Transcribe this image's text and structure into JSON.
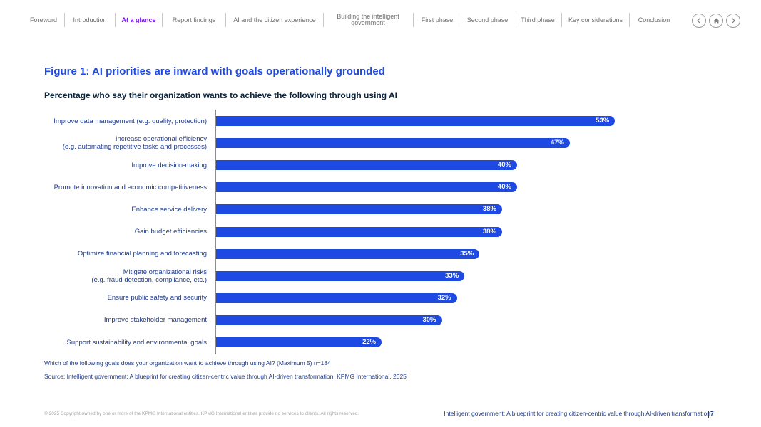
{
  "nav": {
    "items": [
      "Foreword",
      "Introduction",
      "At a glance",
      "Report findings",
      "AI and the citizen experience",
      "Building the intelligent government",
      "First phase",
      "Second phase",
      "Third phase",
      "Key considerations",
      "Conclusion"
    ],
    "active_index": 2,
    "back_icon": "chevron-left-icon",
    "home_icon": "home-icon",
    "forward_icon": "chevron-right-icon"
  },
  "figure": {
    "title": "Figure 1: AI priorities are inward with goals operationally grounded",
    "subtitle": "Percentage who say their organization wants to achieve the following through using AI"
  },
  "chart_data": {
    "type": "bar",
    "orientation": "horizontal",
    "title": "Figure 1: AI priorities are inward with goals operationally grounded",
    "subtitle": "Percentage who say their organization wants to achieve the following through using AI",
    "categories": [
      [
        "Improve data management (e.g. quality, protection)"
      ],
      [
        "Increase operational efficiency",
        "(e.g. automating repetitive tasks and processes)"
      ],
      [
        "Improve decision-making"
      ],
      [
        "Promote innovation and economic competitiveness"
      ],
      [
        "Enhance service delivery"
      ],
      [
        "Gain budget efficiencies"
      ],
      [
        "Optimize financial planning and forecasting"
      ],
      [
        "Mitigate organizational risks",
        "(e.g. fraud detection, compliance, etc.)"
      ],
      [
        "Ensure public safety and security"
      ],
      [
        "Improve stakeholder management"
      ],
      [
        "Support sustainability and environmental goals"
      ]
    ],
    "values": [
      53,
      47,
      40,
      40,
      38,
      38,
      35,
      33,
      32,
      30,
      22
    ],
    "value_labels": [
      "53%",
      "47%",
      "40%",
      "40%",
      "38%",
      "38%",
      "35%",
      "33%",
      "32%",
      "30%",
      "22%"
    ],
    "unit": "%",
    "color": "#1e49e2"
  },
  "notes": {
    "question": "Which of the following goals does your organization want to achieve through using AI? (Maximum 5) n=184",
    "source": "Source: Intelligent government: A blueprint for creating citizen-centric value through AI-driven transformation, KPMG International, 2025"
  },
  "footer": {
    "copyright": "© 2025 Copyright owned by one or more of the KPMG International entities. KPMG International entities provide no services to clients. All rights reserved.",
    "report_title": "Intelligent government: A blueprint for creating citizen-centric value through AI-driven transformation",
    "page_number": "7"
  }
}
